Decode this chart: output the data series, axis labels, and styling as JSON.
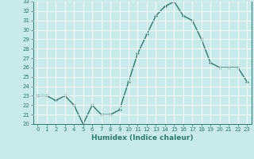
{
  "x": [
    0,
    1,
    2,
    3,
    4,
    5,
    6,
    7,
    8,
    9,
    10,
    11,
    12,
    13,
    14,
    15,
    16,
    17,
    18,
    19,
    20,
    21,
    22,
    23
  ],
  "y": [
    23.0,
    23.0,
    22.5,
    23.0,
    22.0,
    20.0,
    22.0,
    21.0,
    21.0,
    21.5,
    24.5,
    27.5,
    29.5,
    31.5,
    32.5,
    33.0,
    31.5,
    31.0,
    29.0,
    26.5,
    26.0,
    26.0,
    26.0,
    24.5
  ],
  "line_color": "#2d7a6e",
  "marker": "+",
  "marker_size": 3,
  "bg_color": "#c8eaea",
  "grid_color": "#b0d8d8",
  "xlabel": "Humidex (Indice chaleur)",
  "ylabel": "",
  "ylim": [
    20,
    33
  ],
  "yticks": [
    20,
    21,
    22,
    23,
    24,
    25,
    26,
    27,
    28,
    29,
    30,
    31,
    32,
    33
  ],
  "xticks": [
    0,
    1,
    2,
    3,
    4,
    5,
    6,
    7,
    8,
    9,
    10,
    11,
    12,
    13,
    14,
    15,
    16,
    17,
    18,
    19,
    20,
    21,
    22,
    23
  ],
  "axis_color": "#2d7a6e",
  "tick_color": "#2d7a6e",
  "label_color": "#2d7a6e",
  "tick_fontsize": 5.0,
  "xlabel_fontsize": 6.5
}
